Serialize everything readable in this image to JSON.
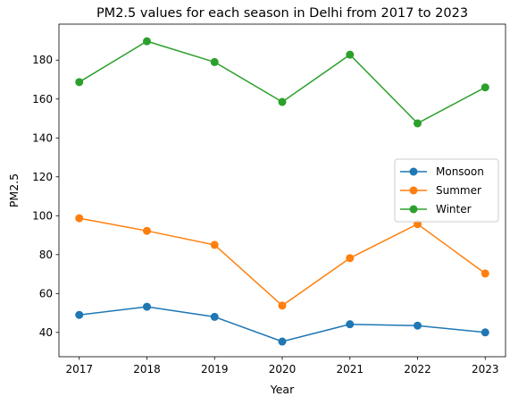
{
  "chart_data": {
    "type": "line",
    "title": "PM2.5 values for each season in Delhi from 2017 to 2023",
    "xlabel": "Year",
    "ylabel": "PM2.5",
    "x": [
      2017,
      2018,
      2019,
      2020,
      2021,
      2022,
      2023
    ],
    "x_tick_labels": [
      "2017",
      "2018",
      "2019",
      "2020",
      "2021",
      "2022",
      "2023"
    ],
    "y_ticks": [
      40,
      60,
      80,
      100,
      120,
      140,
      160,
      180
    ],
    "y_tick_labels": [
      "40",
      "60",
      "80",
      "100",
      "120",
      "140",
      "160",
      "180"
    ],
    "xlim": [
      2016.7,
      2023.3
    ],
    "ylim": [
      27.5,
      198.5
    ],
    "grid": false,
    "legend_position": "center-right",
    "series": [
      {
        "name": "Monsoon",
        "color": "#1f77b4",
        "values": [
          49,
          53.2,
          48,
          35.3,
          44.2,
          43.5,
          40
        ]
      },
      {
        "name": "Summer",
        "color": "#ff7f0e",
        "values": [
          98.7,
          92.2,
          85,
          53.8,
          78.2,
          95.7,
          70.3
        ]
      },
      {
        "name": "Winter",
        "color": "#2ca02c",
        "values": [
          168.7,
          189.7,
          179,
          158.5,
          182.8,
          147.5,
          166
        ]
      }
    ]
  }
}
